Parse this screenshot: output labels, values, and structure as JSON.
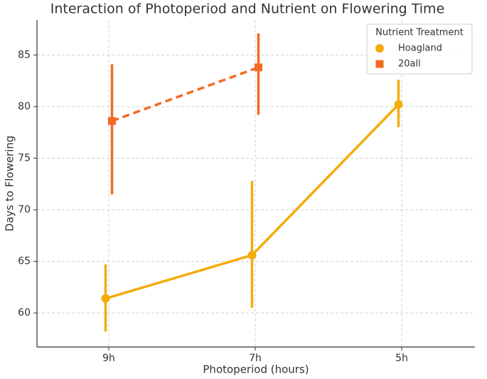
{
  "chart_data": {
    "type": "pointplot",
    "title": "Interaction of Photoperiod and Nutrient on Flowering Time",
    "x_label": "Photoperiod (hours)",
    "y_label": "Days to Flowering",
    "categories": [
      "9h",
      "7h",
      "5h"
    ],
    "legend_title": "Nutrient Treatment",
    "legend": "upper right",
    "grid": true,
    "ylim": [
      56.7,
      88.4
    ],
    "yticks": [
      60,
      65,
      70,
      75,
      80,
      85
    ],
    "series": [
      {
        "name": "Hoagland",
        "color": "#f5ab0a",
        "marker": "circle",
        "linestyle": "solid",
        "values": [
          61.4,
          65.6,
          80.2
        ],
        "ci_low": [
          58.2,
          60.5,
          78.0
        ],
        "ci_high": [
          64.7,
          72.8,
          82.6
        ]
      },
      {
        "name": "20all",
        "color": "#f26b25",
        "marker": "square",
        "linestyle": "dashed",
        "values": [
          78.6,
          83.8,
          null
        ],
        "ci_low": [
          71.5,
          79.2,
          null
        ],
        "ci_high": [
          84.1,
          87.1,
          null
        ]
      }
    ]
  }
}
